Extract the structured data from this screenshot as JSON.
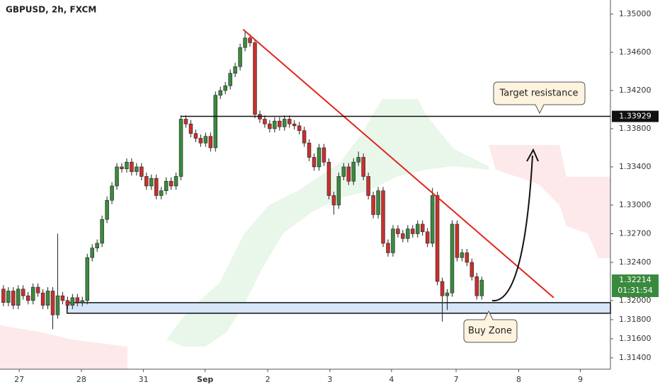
{
  "chart_data": {
    "type": "candlestick",
    "title": "GBPUSD, 2h, FXCM",
    "up_color": "#3a8a3e",
    "down_color": "#c9302c",
    "open": [
      1.3212,
      1.3198,
      1.321,
      1.3195,
      1.3212,
      1.3205,
      1.32,
      1.3214,
      1.3208,
      1.3195,
      1.321,
      1.3185,
      1.3205,
      1.32,
      1.3195,
      1.3203,
      1.3198,
      1.32,
      1.3245,
      1.3255,
      1.326,
      1.3285,
      1.3305,
      1.332,
      1.334,
      1.3338,
      1.3345,
      1.3335,
      1.334,
      1.333,
      1.332,
      1.3328,
      1.331,
      1.3315,
      1.3325,
      1.332,
      1.333,
      1.339,
      1.3385,
      1.3375,
      1.337,
      1.3365,
      1.3372,
      1.336,
      1.3415,
      1.342,
      1.3425,
      1.3438,
      1.3445,
      1.3465,
      1.3475,
      1.347,
      1.3395,
      1.339,
      1.3385,
      1.338,
      1.3388,
      1.3382,
      1.339,
      1.3385,
      1.3383,
      1.3378,
      1.3365,
      1.335,
      1.334,
      1.336,
      1.3345,
      1.331,
      1.33,
      1.333,
      1.334,
      1.3325,
      1.3345,
      1.335,
      1.333,
      1.331,
      1.329,
      1.3315,
      1.326,
      1.325,
      1.3275,
      1.327,
      1.3265,
      1.3275,
      1.327,
      1.328,
      1.3272,
      1.326,
      1.331,
      1.322,
      1.3205,
      1.3208,
      1.328,
      1.3245,
      1.325,
      1.324,
      1.3225,
      1.3205
    ],
    "high": [
      1.3216,
      1.3214,
      1.3214,
      1.3216,
      1.3216,
      1.3209,
      1.3218,
      1.3218,
      1.3212,
      1.3214,
      1.3214,
      1.327,
      1.3209,
      1.3204,
      1.3207,
      1.3207,
      1.3204,
      1.3249,
      1.3259,
      1.3264,
      1.3289,
      1.3309,
      1.3324,
      1.3344,
      1.3344,
      1.3349,
      1.3349,
      1.3344,
      1.3344,
      1.3334,
      1.3332,
      1.3332,
      1.3319,
      1.3329,
      1.3329,
      1.3334,
      1.3394,
      1.3394,
      1.3389,
      1.3379,
      1.3374,
      1.3376,
      1.3376,
      1.3419,
      1.3424,
      1.3429,
      1.3442,
      1.3449,
      1.3469,
      1.3482,
      1.3479,
      1.3474,
      1.3399,
      1.3394,
      1.3389,
      1.3392,
      1.3392,
      1.3394,
      1.3394,
      1.3389,
      1.3387,
      1.3382,
      1.3369,
      1.3354,
      1.3364,
      1.3364,
      1.3349,
      1.3314,
      1.3334,
      1.3344,
      1.3344,
      1.3349,
      1.3356,
      1.3354,
      1.3334,
      1.3314,
      1.3319,
      1.3319,
      1.3264,
      1.3279,
      1.3279,
      1.3274,
      1.3279,
      1.3279,
      1.3284,
      1.3284,
      1.3276,
      1.3318,
      1.3314,
      1.3224,
      1.3212,
      1.3284,
      1.3284,
      1.3254,
      1.3254,
      1.3244,
      1.3229,
      1.3225
    ],
    "low": [
      1.3194,
      1.3194,
      1.3191,
      1.3191,
      1.3201,
      1.3196,
      1.3196,
      1.3204,
      1.3191,
      1.3191,
      1.317,
      1.3181,
      1.3196,
      1.3191,
      1.3191,
      1.3194,
      1.3194,
      1.3196,
      1.3241,
      1.3251,
      1.3256,
      1.3281,
      1.3301,
      1.3316,
      1.3334,
      1.3334,
      1.3331,
      1.3331,
      1.3326,
      1.3316,
      1.3316,
      1.3306,
      1.3306,
      1.3311,
      1.3316,
      1.3316,
      1.3326,
      1.3381,
      1.3371,
      1.3366,
      1.3361,
      1.3361,
      1.3356,
      1.3356,
      1.3411,
      1.3416,
      1.3421,
      1.3434,
      1.3441,
      1.3461,
      1.3466,
      1.3391,
      1.3386,
      1.3381,
      1.3376,
      1.3376,
      1.3378,
      1.3378,
      1.3381,
      1.3379,
      1.3374,
      1.3361,
      1.3346,
      1.3336,
      1.3336,
      1.3341,
      1.3306,
      1.329,
      1.3296,
      1.3326,
      1.3321,
      1.3321,
      1.3341,
      1.3326,
      1.3306,
      1.3286,
      1.3286,
      1.3256,
      1.3246,
      1.3246,
      1.3266,
      1.3261,
      1.3261,
      1.3266,
      1.3266,
      1.3268,
      1.3256,
      1.3256,
      1.3216,
      1.3178,
      1.319,
      1.3204,
      1.3241,
      1.3241,
      1.3236,
      1.3221,
      1.3201,
      1.3201
    ],
    "close": [
      1.3198,
      1.321,
      1.3195,
      1.3212,
      1.3205,
      1.32,
      1.3214,
      1.3208,
      1.3195,
      1.321,
      1.3185,
      1.3205,
      1.32,
      1.3195,
      1.3203,
      1.3198,
      1.32,
      1.3245,
      1.3255,
      1.326,
      1.3285,
      1.3305,
      1.332,
      1.334,
      1.3338,
      1.3345,
      1.3335,
      1.334,
      1.333,
      1.332,
      1.3328,
      1.331,
      1.3315,
      1.3325,
      1.332,
      1.333,
      1.339,
      1.3385,
      1.3375,
      1.337,
      1.3365,
      1.3372,
      1.336,
      1.3415,
      1.342,
      1.3425,
      1.3438,
      1.3445,
      1.3465,
      1.3475,
      1.347,
      1.3395,
      1.339,
      1.3385,
      1.338,
      1.3388,
      1.3382,
      1.339,
      1.3385,
      1.3383,
      1.3378,
      1.3365,
      1.335,
      1.334,
      1.336,
      1.3345,
      1.331,
      1.33,
      1.333,
      1.334,
      1.3325,
      1.3345,
      1.335,
      1.333,
      1.331,
      1.329,
      1.3315,
      1.326,
      1.325,
      1.3275,
      1.327,
      1.3265,
      1.3275,
      1.327,
      1.328,
      1.3272,
      1.326,
      1.331,
      1.322,
      1.3205,
      1.3208,
      1.328,
      1.3245,
      1.325,
      1.324,
      1.3225,
      1.3205,
      1.32214
    ],
    "xlim": [
      -0.7,
      123.1
    ],
    "xticks": [
      {
        "value": 3.2,
        "label": "27"
      },
      {
        "value": 15.8,
        "label": "28"
      },
      {
        "value": 28.4,
        "label": "31"
      },
      {
        "value": 40.9,
        "label": "Sep"
      },
      {
        "value": 53.6,
        "label": "2"
      },
      {
        "value": 66.2,
        "label": "3"
      },
      {
        "value": 78.7,
        "label": "4"
      },
      {
        "value": 91.8,
        "label": "7"
      },
      {
        "value": 104.5,
        "label": "8"
      },
      {
        "value": 117,
        "label": "9"
      }
    ],
    "ylim": [
      1.31281,
      1.35148
    ],
    "yticks": [
      {
        "value": 1.35,
        "label": "1.35000"
      },
      {
        "value": 1.346,
        "label": "1.34600"
      },
      {
        "value": 1.342,
        "label": "1.34200"
      },
      {
        "value": 1.338,
        "label": "1.33800"
      },
      {
        "value": 1.334,
        "label": "1.33400"
      },
      {
        "value": 1.33,
        "label": "1.33000"
      },
      {
        "value": 1.327,
        "label": "1.32700"
      },
      {
        "value": 1.324,
        "label": "1.32400"
      },
      {
        "value": 1.32,
        "label": "1.32000"
      },
      {
        "value": 1.318,
        "label": "1.31800"
      },
      {
        "value": 1.316,
        "label": "1.31600"
      },
      {
        "value": 1.314,
        "label": "1.31400"
      }
    ],
    "resistance": 1.33929,
    "last_price": 1.32214,
    "countdown": "01:31:54",
    "trendline": {
      "x": [
        48.6,
        111.6
      ],
      "y": [
        1.3484,
        1.3203
      ]
    },
    "buy_zone": {
      "x_start": 12.9,
      "y": [
        1.31867,
        1.31978
      ]
    },
    "annotations": [
      "Target resistance",
      "Buy Zone"
    ]
  }
}
